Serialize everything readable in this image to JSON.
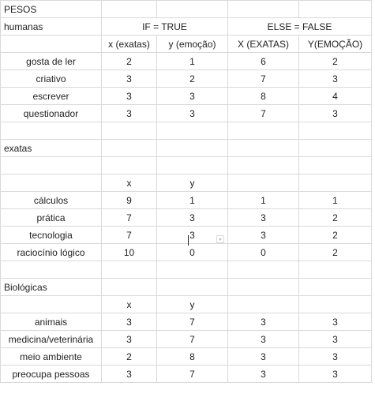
{
  "title_cell": "PESOS",
  "group_header": {
    "label": "humanas",
    "if_label": "IF = TRUE",
    "else_label": "ELSE = FALSE"
  },
  "humanas_headers": [
    "x (exatas)",
    "y (emoção)",
    "X (EXATAS)",
    "Y(EMOÇÃO)"
  ],
  "humanas_rows": [
    {
      "label": "gosta de ler",
      "cells": [
        "2",
        "1",
        "6",
        "2"
      ]
    },
    {
      "label": "criativo",
      "cells": [
        "3",
        "2",
        "7",
        "3"
      ]
    },
    {
      "label": "escrever",
      "cells": [
        "3",
        "3",
        "8",
        "4"
      ]
    },
    {
      "label": "questionador",
      "cells": [
        "3",
        "3",
        "7",
        "3"
      ]
    }
  ],
  "exatas_label": "exatas",
  "exatas_headers": [
    "x",
    "y"
  ],
  "exatas_rows": [
    {
      "label": "cálculos",
      "cells": [
        "9",
        "1",
        "1",
        "1"
      ]
    },
    {
      "label": "prática",
      "cells": [
        "7",
        "3",
        "3",
        "2"
      ]
    },
    {
      "label": "tecnologia",
      "cells": [
        "7",
        "3",
        "3",
        "2"
      ]
    },
    {
      "label": "raciocínio lógico",
      "cells": [
        "10",
        "0",
        "0",
        "2"
      ]
    }
  ],
  "biologicas_label": "Biológicas",
  "biologicas_headers": [
    "x",
    "y"
  ],
  "biologicas_rows": [
    {
      "label": "animais",
      "cells": [
        "3",
        "7",
        "3",
        "3"
      ]
    },
    {
      "label": "medicina/veterinária",
      "cells": [
        "3",
        "7",
        "3",
        "3"
      ]
    },
    {
      "label": "meio ambiente",
      "cells": [
        "2",
        "8",
        "3",
        "3"
      ]
    },
    {
      "label": "preocupa pessoas",
      "cells": [
        "3",
        "7",
        "3",
        "3"
      ]
    }
  ]
}
